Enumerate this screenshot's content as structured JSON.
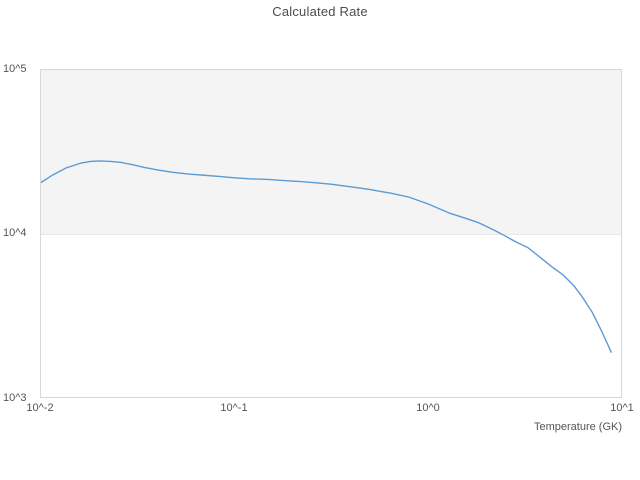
{
  "chart_data": {
    "type": "line",
    "title": "Calculated Rate",
    "xlabel": "Temperature (GK)",
    "ylabel": "",
    "x_scale": "log",
    "y_scale": "log",
    "xlim": [
      0.01,
      10
    ],
    "ylim": [
      1000,
      100000
    ],
    "grid": "off",
    "legend": "none",
    "x_ticks": [
      {
        "label": "10^-2",
        "value": 0.01
      },
      {
        "label": "10^-1",
        "value": 0.1
      },
      {
        "label": "10^0",
        "value": 1
      },
      {
        "label": "10^1",
        "value": 10
      }
    ],
    "y_ticks": [
      {
        "label": "10^5",
        "value": 100000
      },
      {
        "label": "10^4",
        "value": 10000
      },
      {
        "label": "10^3",
        "value": 1000
      }
    ],
    "shaded_band": {
      "y_from": 10000,
      "y_to": 100000,
      "color": "#f4f4f4"
    },
    "series": [
      {
        "name": "Calculated Rate",
        "color": "#5b9bd5",
        "line_width": 1.4,
        "x": [
          0.01,
          0.0115,
          0.0135,
          0.016,
          0.018,
          0.02,
          0.023,
          0.026,
          0.03,
          0.034,
          0.04,
          0.048,
          0.058,
          0.07,
          0.085,
          0.1,
          0.12,
          0.15,
          0.18,
          0.22,
          0.27,
          0.32,
          0.4,
          0.5,
          0.65,
          0.8,
          1.0,
          1.3,
          1.6,
          1.85,
          2.2,
          2.5,
          2.9,
          3.3,
          3.9,
          4.4,
          5.0,
          5.7,
          6.3,
          7.1,
          8.0,
          8.9
        ],
        "y": [
          20500,
          22800,
          25200,
          26900,
          27600,
          27800,
          27600,
          27200,
          26300,
          25400,
          24500,
          23700,
          23100,
          22700,
          22300,
          21900,
          21600,
          21400,
          21100,
          20800,
          20400,
          20000,
          19300,
          18600,
          17600,
          16700,
          15200,
          13300,
          12300,
          11600,
          10500,
          9700,
          8800,
          8200,
          7000,
          6250,
          5600,
          4800,
          4100,
          3300,
          2480,
          1880
        ]
      }
    ]
  },
  "layout_colors": {
    "plot_border": "#d7d7d7",
    "band_fill": "#f4f4f4",
    "text": "#555555",
    "title_text": "#4d4d4d"
  }
}
